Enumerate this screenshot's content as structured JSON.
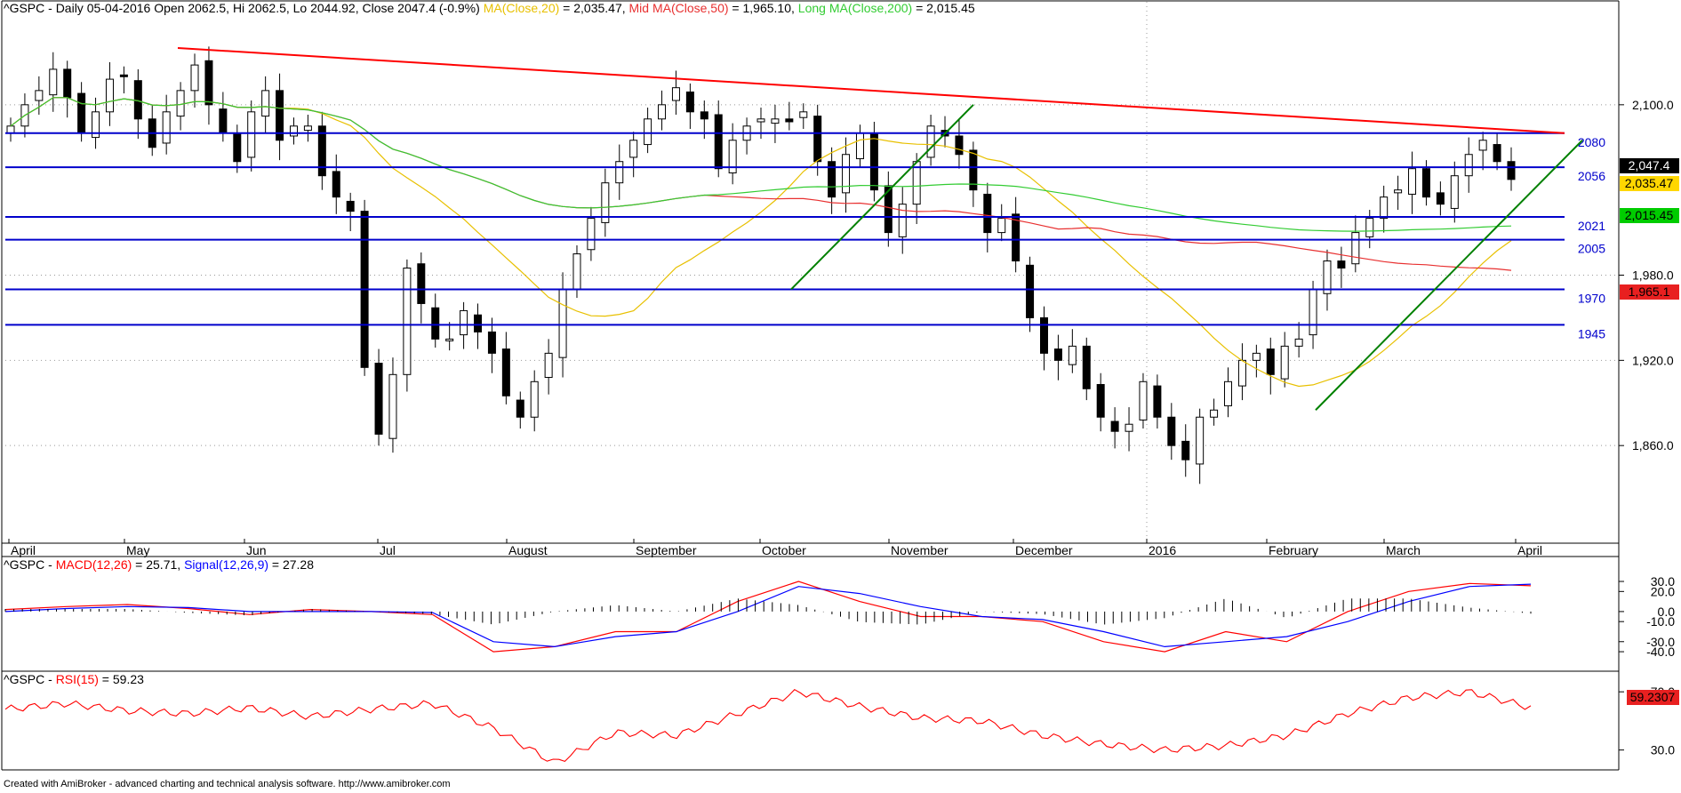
{
  "header": {
    "symbol": "^GSPC",
    "info": " - Daily 05-04-2016 Open 2062.5, Hi 2062.5, Lo 2044.92, Close 2047.4 (-0.9%) ",
    "ma20_label": "MA(Close,20)",
    "ma20_value": " = 2,035.47, ",
    "ma50_label": "Mid MA(Close,50)",
    "ma50_value": " = 1,965.10, ",
    "ma200_label": "Long MA(Close,200)",
    "ma200_value": " = 2,015.45"
  },
  "macd_header": {
    "prefix": "^GSPC - ",
    "macd_label": "MACD(12,26)",
    "macd_value": " = 25.71, ",
    "signal_label": "Signal(12,26,9)",
    "signal_value": " = 27.28"
  },
  "rsi_header": {
    "prefix": "^GSPC - ",
    "rsi_label": "RSI(15)",
    "rsi_value": " = 59.23"
  },
  "footer": {
    "credit": "Created with AmiBroker - advanced charting and technical analysis software. http://www.amibroker.com"
  },
  "colors": {
    "ma20": "#e8c000",
    "ma50": "#e83030",
    "ma200": "#33cc33",
    "resistance": "#ff0000",
    "support": "#0000cc",
    "trend": "#008000",
    "macd": "#ff0000",
    "signal": "#0000ff",
    "rsi": "#ff0000"
  },
  "chart_data": [
    {
      "type": "candlestick",
      "name": "^GSPC Daily",
      "x_labels": [
        "April",
        "May",
        "Jun",
        "Jul",
        "August",
        "September",
        "October",
        "November",
        "December",
        "2016",
        "February",
        "March",
        "April"
      ],
      "ylim": [
        1795,
        2160
      ],
      "y_ticks": [
        1860,
        1920,
        1980,
        2100
      ],
      "y_tick_labels": [
        "1,860.0",
        "1,920.0",
        "1,980.0",
        "2,100.0"
      ],
      "horizontal_levels": [
        2080,
        2056,
        2021,
        2005,
        1970,
        1945
      ],
      "last_values": {
        "close": "2,047.4",
        "ma20": "2,035.47",
        "ma200": "2,015.45",
        "ma50": "1,965.1"
      },
      "ohlc_monthly_approx": [
        {
          "month": "April",
          "open": 2065,
          "high": 2125,
          "low": 2065,
          "close": 2085
        },
        {
          "month": "May",
          "open": 2085,
          "high": 2135,
          "low": 2075,
          "close": 2105
        },
        {
          "month": "Jun",
          "open": 2105,
          "high": 2130,
          "low": 2065,
          "close": 2085
        },
        {
          "month": "Jul",
          "open": 2085,
          "high": 2133,
          "low": 2045,
          "close": 2105
        },
        {
          "month": "August",
          "open": 2105,
          "high": 2112,
          "low": 1868,
          "close": 1920
        },
        {
          "month": "September",
          "open": 1920,
          "high": 1995,
          "low": 1872,
          "close": 1920
        },
        {
          "month": "October",
          "open": 1920,
          "high": 2085,
          "low": 1920,
          "close": 2080
        },
        {
          "month": "November",
          "open": 2080,
          "high": 2115,
          "low": 2040,
          "close": 2085
        },
        {
          "month": "December",
          "open": 2085,
          "high": 2105,
          "low": 1995,
          "close": 2045
        },
        {
          "month": "2016",
          "open": 2040,
          "high": 2045,
          "low": 1813,
          "close": 1940
        },
        {
          "month": "February",
          "open": 1940,
          "high": 1952,
          "low": 1810,
          "close": 1930
        },
        {
          "month": "March",
          "open": 1930,
          "high": 2073,
          "low": 1890,
          "close": 2065
        },
        {
          "month": "April",
          "open": 2062.5,
          "high": 2072,
          "low": 2044.92,
          "close": 2047.4
        }
      ]
    },
    {
      "type": "line",
      "name": "MACD",
      "ylim": [
        -55,
        38
      ],
      "y_ticks": [
        30,
        20,
        0,
        -10,
        -30,
        -40
      ],
      "y_tick_labels": [
        "30.0",
        "20.0",
        "0.0",
        "-10.0",
        "-30.0",
        "-40.0"
      ],
      "series": [
        {
          "name": "MACD(12,26)",
          "values": [
            2,
            5,
            7,
            3,
            -3,
            2,
            0,
            -3,
            -40,
            -35,
            -20,
            -20,
            10,
            30,
            10,
            -5,
            -5,
            -10,
            -30,
            -40,
            -20,
            -30,
            0,
            20,
            28,
            25.71
          ]
        },
        {
          "name": "Signal(12,26,9)",
          "values": [
            0,
            3,
            5,
            4,
            0,
            0,
            0,
            -1,
            -30,
            -35,
            -25,
            -20,
            0,
            25,
            18,
            5,
            -5,
            -8,
            -20,
            -35,
            -30,
            -25,
            -10,
            10,
            25,
            27.28
          ]
        }
      ]
    },
    {
      "type": "line",
      "name": "RSI",
      "ylim": [
        20,
        75
      ],
      "y_ticks": [
        70,
        30
      ],
      "y_tick_labels": [
        "70.0",
        "30.0"
      ],
      "last_value_label": "59.2307",
      "series": [
        {
          "name": "RSI(15)",
          "values": [
            58,
            62,
            57,
            55,
            59,
            53,
            58,
            62,
            45,
            21,
            42,
            40,
            55,
            70,
            60,
            52,
            50,
            40,
            34,
            30,
            33,
            40,
            55,
            66,
            70,
            59.23
          ]
        }
      ]
    }
  ]
}
